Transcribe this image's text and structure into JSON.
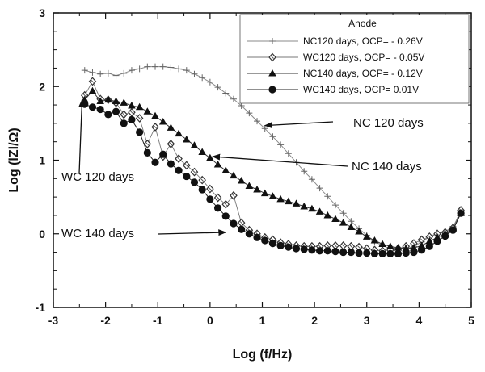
{
  "chart_data": {
    "type": "line",
    "xlabel": "Log (f/Hz)",
    "ylabel": "Log (lZl/Ω)",
    "xlim": [
      -3,
      5
    ],
    "ylim": [
      -1,
      3
    ],
    "xticks": [
      "-3",
      "-2",
      "-1",
      "0",
      "1",
      "2",
      "3",
      "4",
      "5"
    ],
    "yticks": [
      "-1",
      "0",
      "1",
      "2",
      "3"
    ],
    "grid": false,
    "legend": {
      "title": "Anode",
      "position": "top-right",
      "entries": [
        "NC120 days, OCP= - 0.26V",
        "WC120 days, OCP= - 0.05V",
        "NC140 days, OCP= - 0.12V",
        "WC140 days, OCP= 0.01V"
      ]
    },
    "annotations": [
      {
        "text": "NC 120 days",
        "target": [
          1.05,
          1.47
        ]
      },
      {
        "text": "NC 140 days",
        "target": [
          0.05,
          1.05
        ]
      },
      {
        "text": "WC 120 days",
        "target": [
          -2.45,
          1.82
        ]
      },
      {
        "text": "WC 140 days",
        "target": [
          0.3,
          0.02
        ]
      }
    ],
    "series": [
      {
        "name": "NC120 days, OCP= - 0.26V",
        "marker": "plus",
        "x": [
          -2.4,
          -2.25,
          -2.1,
          -1.95,
          -1.8,
          -1.65,
          -1.5,
          -1.35,
          -1.2,
          -1.05,
          -0.9,
          -0.75,
          -0.6,
          -0.45,
          -0.3,
          -0.15,
          0.0,
          0.15,
          0.3,
          0.45,
          0.6,
          0.75,
          0.9,
          1.05,
          1.2,
          1.35,
          1.5,
          1.65,
          1.8,
          1.95,
          2.1,
          2.25,
          2.4,
          2.55,
          2.7,
          2.85,
          3.0,
          3.15,
          3.3,
          3.45,
          3.6,
          3.75,
          3.9,
          4.05,
          4.2,
          4.35,
          4.5,
          4.65,
          4.8
        ],
        "y": [
          2.22,
          2.19,
          2.17,
          2.18,
          2.15,
          2.18,
          2.22,
          2.24,
          2.27,
          2.27,
          2.27,
          2.26,
          2.24,
          2.22,
          2.17,
          2.12,
          2.06,
          1.99,
          1.91,
          1.83,
          1.74,
          1.64,
          1.53,
          1.43,
          1.32,
          1.21,
          1.09,
          0.97,
          0.85,
          0.74,
          0.62,
          0.51,
          0.39,
          0.28,
          0.17,
          0.07,
          -0.02,
          -0.1,
          -0.16,
          -0.2,
          -0.21,
          -0.2,
          -0.17,
          -0.11,
          -0.04,
          0.01,
          0.03,
          0.1,
          0.28
        ]
      },
      {
        "name": "WC120 days, OCP= - 0.05V",
        "marker": "diamond",
        "x": [
          -2.4,
          -2.25,
          -2.1,
          -1.95,
          -1.8,
          -1.65,
          -1.5,
          -1.35,
          -1.2,
          -1.05,
          -0.9,
          -0.75,
          -0.6,
          -0.45,
          -0.3,
          -0.15,
          0.0,
          0.15,
          0.3,
          0.45,
          0.6,
          0.75,
          0.9,
          1.05,
          1.2,
          1.35,
          1.5,
          1.65,
          1.8,
          1.95,
          2.1,
          2.25,
          2.4,
          2.55,
          2.7,
          2.85,
          3.0,
          3.15,
          3.3,
          3.45,
          3.6,
          3.75,
          3.9,
          4.05,
          4.2,
          4.35,
          4.5,
          4.65,
          4.8
        ],
        "y": [
          1.88,
          2.07,
          1.83,
          1.82,
          1.78,
          1.62,
          1.65,
          1.57,
          1.22,
          1.45,
          1.05,
          1.22,
          1.02,
          0.93,
          0.84,
          0.73,
          0.61,
          0.49,
          0.4,
          0.52,
          0.15,
          0.05,
          0.0,
          -0.05,
          -0.08,
          -0.12,
          -0.14,
          -0.16,
          -0.17,
          -0.17,
          -0.17,
          -0.16,
          -0.16,
          -0.16,
          -0.17,
          -0.18,
          -0.2,
          -0.22,
          -0.23,
          -0.22,
          -0.2,
          -0.17,
          -0.13,
          -0.08,
          -0.04,
          0.0,
          0.02,
          0.08,
          0.32
        ]
      },
      {
        "name": "NC140 days, OCP= - 0.12V",
        "marker": "triangle",
        "x": [
          -2.4,
          -2.25,
          -2.1,
          -1.95,
          -1.8,
          -1.65,
          -1.5,
          -1.35,
          -1.2,
          -1.05,
          -0.9,
          -0.75,
          -0.6,
          -0.45,
          -0.3,
          -0.15,
          0.0,
          0.15,
          0.3,
          0.45,
          0.6,
          0.75,
          0.9,
          1.05,
          1.2,
          1.35,
          1.5,
          1.65,
          1.8,
          1.95,
          2.1,
          2.25,
          2.4,
          2.55,
          2.7,
          2.85,
          3.0,
          3.15,
          3.3,
          3.45,
          3.6,
          3.75,
          3.9,
          4.05,
          4.2,
          4.35,
          4.5,
          4.65,
          4.8
        ],
        "y": [
          1.82,
          1.94,
          1.8,
          1.82,
          1.8,
          1.78,
          1.74,
          1.72,
          1.66,
          1.6,
          1.52,
          1.44,
          1.36,
          1.28,
          1.2,
          1.11,
          1.03,
          0.94,
          0.86,
          0.79,
          0.72,
          0.65,
          0.6,
          0.55,
          0.51,
          0.47,
          0.44,
          0.41,
          0.37,
          0.34,
          0.3,
          0.25,
          0.2,
          0.15,
          0.09,
          0.03,
          -0.04,
          -0.09,
          -0.14,
          -0.17,
          -0.19,
          -0.2,
          -0.19,
          -0.16,
          -0.1,
          -0.05,
          0.0,
          0.06,
          0.28
        ]
      },
      {
        "name": "WC140 days, OCP= 0.01V",
        "marker": "circle",
        "x": [
          -2.4,
          -2.25,
          -2.1,
          -1.95,
          -1.8,
          -1.65,
          -1.5,
          -1.35,
          -1.2,
          -1.05,
          -0.9,
          -0.75,
          -0.6,
          -0.45,
          -0.3,
          -0.15,
          0.0,
          0.15,
          0.3,
          0.45,
          0.6,
          0.75,
          0.9,
          1.05,
          1.2,
          1.35,
          1.5,
          1.65,
          1.8,
          1.95,
          2.1,
          2.25,
          2.4,
          2.55,
          2.7,
          2.85,
          3.0,
          3.15,
          3.3,
          3.45,
          3.6,
          3.75,
          3.9,
          4.05,
          4.2,
          4.35,
          4.5,
          4.65,
          4.8
        ],
        "y": [
          1.76,
          1.72,
          1.69,
          1.62,
          1.66,
          1.5,
          1.55,
          1.38,
          1.1,
          0.97,
          1.08,
          0.95,
          0.86,
          0.78,
          0.7,
          0.6,
          0.47,
          0.35,
          0.24,
          0.14,
          0.06,
          0.0,
          -0.05,
          -0.09,
          -0.13,
          -0.16,
          -0.18,
          -0.2,
          -0.21,
          -0.22,
          -0.23,
          -0.23,
          -0.24,
          -0.25,
          -0.25,
          -0.26,
          -0.26,
          -0.27,
          -0.27,
          -0.27,
          -0.27,
          -0.26,
          -0.25,
          -0.22,
          -0.17,
          -0.1,
          -0.03,
          0.05,
          0.28
        ]
      }
    ]
  }
}
